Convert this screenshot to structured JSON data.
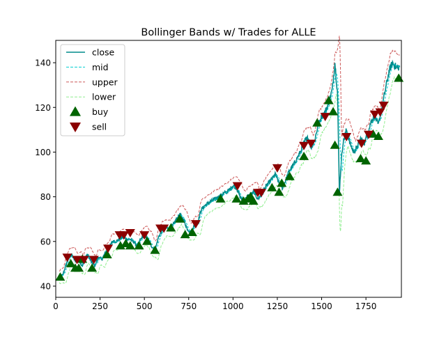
{
  "chart_data": {
    "type": "line",
    "title": "Bollinger Bands w/ Trades for ALLE",
    "xlabel": "",
    "ylabel": "",
    "xlim": [
      0,
      1950
    ],
    "ylim": [
      35,
      150
    ],
    "x_ticks": [
      0,
      250,
      500,
      750,
      1000,
      1250,
      1500,
      1750
    ],
    "y_ticks": [
      40,
      60,
      80,
      100,
      120,
      140
    ],
    "grid": false,
    "legend_position": "top-left",
    "colors": {
      "close": "#008b8b",
      "mid": "#00ced1",
      "upper": "#cd5c5c",
      "lower": "#90ee90",
      "buy": "#006400",
      "sell": "#8b0000"
    },
    "legend": [
      {
        "key": "close",
        "label": "close"
      },
      {
        "key": "mid",
        "label": "mid"
      },
      {
        "key": "upper",
        "label": "upper"
      },
      {
        "key": "lower",
        "label": "lower"
      },
      {
        "key": "buy",
        "label": "buy"
      },
      {
        "key": "sell",
        "label": "sell"
      }
    ],
    "close_anchors": [
      [
        20,
        44
      ],
      [
        40,
        45
      ],
      [
        60,
        50
      ],
      [
        75,
        53
      ],
      [
        90,
        54
      ],
      [
        110,
        51
      ],
      [
        130,
        52
      ],
      [
        150,
        49
      ],
      [
        165,
        53
      ],
      [
        180,
        54
      ],
      [
        200,
        51
      ],
      [
        220,
        49
      ],
      [
        240,
        53
      ],
      [
        260,
        52
      ],
      [
        280,
        55
      ],
      [
        300,
        57
      ],
      [
        320,
        60
      ],
      [
        340,
        60
      ],
      [
        360,
        61
      ],
      [
        380,
        62
      ],
      [
        400,
        61
      ],
      [
        420,
        61
      ],
      [
        440,
        60
      ],
      [
        460,
        58
      ],
      [
        480,
        61
      ],
      [
        500,
        63
      ],
      [
        520,
        61
      ],
      [
        540,
        58
      ],
      [
        560,
        56
      ],
      [
        580,
        62
      ],
      [
        600,
        65
      ],
      [
        620,
        66
      ],
      [
        640,
        66
      ],
      [
        660,
        67
      ],
      [
        680,
        70
      ],
      [
        700,
        72
      ],
      [
        720,
        70
      ],
      [
        740,
        66
      ],
      [
        760,
        64
      ],
      [
        780,
        67
      ],
      [
        800,
        68
      ],
      [
        820,
        74
      ],
      [
        840,
        76
      ],
      [
        860,
        77
      ],
      [
        880,
        78
      ],
      [
        900,
        79
      ],
      [
        920,
        80
      ],
      [
        940,
        81
      ],
      [
        960,
        82
      ],
      [
        980,
        83
      ],
      [
        1000,
        85
      ],
      [
        1020,
        84
      ],
      [
        1040,
        80
      ],
      [
        1060,
        78
      ],
      [
        1080,
        80
      ],
      [
        1100,
        81
      ],
      [
        1120,
        82
      ],
      [
        1140,
        79
      ],
      [
        1160,
        81
      ],
      [
        1180,
        84
      ],
      [
        1200,
        86
      ],
      [
        1220,
        88
      ],
      [
        1240,
        90
      ],
      [
        1260,
        86
      ],
      [
        1280,
        84
      ],
      [
        1300,
        88
      ],
      [
        1320,
        92
      ],
      [
        1340,
        94
      ],
      [
        1360,
        97
      ],
      [
        1380,
        100
      ],
      [
        1400,
        104
      ],
      [
        1420,
        107
      ],
      [
        1440,
        102
      ],
      [
        1460,
        105
      ],
      [
        1480,
        112
      ],
      [
        1500,
        116
      ],
      [
        1520,
        118
      ],
      [
        1540,
        122
      ],
      [
        1560,
        128
      ],
      [
        1575,
        140
      ],
      [
        1590,
        126
      ],
      [
        1600,
        82
      ],
      [
        1610,
        95
      ],
      [
        1620,
        104
      ],
      [
        1640,
        110
      ],
      [
        1660,
        104
      ],
      [
        1680,
        100
      ],
      [
        1700,
        102
      ],
      [
        1720,
        106
      ],
      [
        1740,
        104
      ],
      [
        1760,
        108
      ],
      [
        1780,
        114
      ],
      [
        1800,
        116
      ],
      [
        1820,
        112
      ],
      [
        1840,
        120
      ],
      [
        1860,
        128
      ],
      [
        1880,
        136
      ],
      [
        1900,
        140
      ],
      [
        1920,
        138
      ],
      [
        1940,
        138
      ]
    ],
    "buy_points": [
      [
        25,
        44
      ],
      [
        85,
        50
      ],
      [
        110,
        48
      ],
      [
        130,
        48
      ],
      [
        150,
        52
      ],
      [
        205,
        48
      ],
      [
        290,
        54
      ],
      [
        365,
        58
      ],
      [
        395,
        59
      ],
      [
        420,
        58
      ],
      [
        470,
        58
      ],
      [
        515,
        60
      ],
      [
        560,
        56
      ],
      [
        650,
        66
      ],
      [
        700,
        70
      ],
      [
        730,
        63
      ],
      [
        770,
        64
      ],
      [
        930,
        79
      ],
      [
        1020,
        79
      ],
      [
        1060,
        78
      ],
      [
        1085,
        79
      ],
      [
        1100,
        80
      ],
      [
        1115,
        78
      ],
      [
        1220,
        84
      ],
      [
        1260,
        82
      ],
      [
        1275,
        86
      ],
      [
        1320,
        89
      ],
      [
        1400,
        98
      ],
      [
        1475,
        113
      ],
      [
        1540,
        123
      ],
      [
        1565,
        118
      ],
      [
        1575,
        103
      ],
      [
        1590,
        82
      ],
      [
        1720,
        97
      ],
      [
        1750,
        96
      ],
      [
        1790,
        108
      ],
      [
        1820,
        107
      ],
      [
        1935,
        133
      ]
    ],
    "sell_points": [
      [
        65,
        53
      ],
      [
        120,
        52
      ],
      [
        160,
        52
      ],
      [
        215,
        52
      ],
      [
        295,
        57
      ],
      [
        360,
        63
      ],
      [
        385,
        63
      ],
      [
        420,
        64
      ],
      [
        500,
        63
      ],
      [
        590,
        66
      ],
      [
        610,
        66
      ],
      [
        790,
        68
      ],
      [
        1025,
        85
      ],
      [
        1140,
        82
      ],
      [
        1160,
        82
      ],
      [
        1250,
        93
      ],
      [
        1400,
        103
      ],
      [
        1440,
        104
      ],
      [
        1520,
        116
      ],
      [
        1640,
        107
      ],
      [
        1725,
        104
      ],
      [
        1765,
        108
      ],
      [
        1800,
        117
      ],
      [
        1830,
        118
      ],
      [
        1850,
        121
      ]
    ]
  }
}
